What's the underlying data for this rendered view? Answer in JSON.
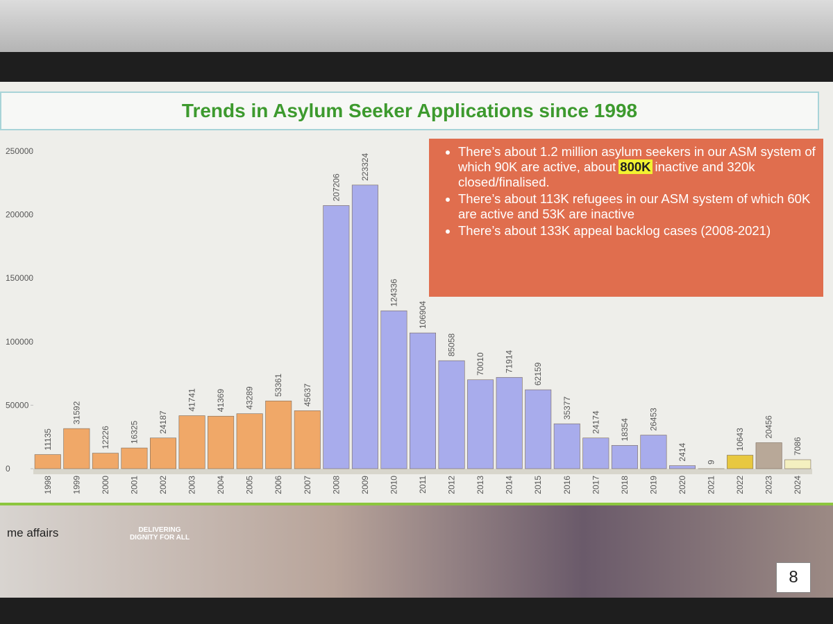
{
  "chart_data": {
    "type": "bar",
    "title": "Trends in Asylum Seeker Applications since 1998",
    "categories": [
      "1998",
      "1999",
      "2000",
      "2001",
      "2002",
      "2003",
      "2004",
      "2005",
      "2006",
      "2007",
      "2008",
      "2009",
      "2010",
      "2011",
      "2012",
      "2013",
      "2014",
      "2015",
      "2016",
      "2017",
      "2018",
      "2019",
      "2020",
      "2021",
      "2022",
      "2023",
      "2024"
    ],
    "values": [
      11135,
      31592,
      12226,
      16325,
      24187,
      41741,
      41369,
      43289,
      53361,
      45637,
      207206,
      223324,
      124336,
      106904,
      85058,
      70010,
      71914,
      62159,
      35377,
      24174,
      18354,
      26453,
      2414,
      9,
      10643,
      20456,
      7086
    ],
    "colors": [
      "#f0a868",
      "#f0a868",
      "#f0a868",
      "#f0a868",
      "#f0a868",
      "#f0a868",
      "#f0a868",
      "#f0a868",
      "#f0a868",
      "#f0a868",
      "#a8acec",
      "#a8acec",
      "#a8acec",
      "#a8acec",
      "#a8acec",
      "#a8acec",
      "#a8acec",
      "#a8acec",
      "#a8acec",
      "#a8acec",
      "#a8acec",
      "#a8acec",
      "#a8acec",
      "#e8c840",
      "#e8c840",
      "#b8a898",
      "#f4f0c0"
    ],
    "ylim": [
      0,
      250000
    ],
    "yticks": [
      0,
      50000,
      100000,
      150000,
      200000,
      250000
    ],
    "grid": false,
    "annotations": [
      [
        "There’s about 1.2 million asylum seekers in our ASM system of which 90K are active, about",
        "800K",
        "inactive and 320k closed/finalised."
      ],
      [
        "There’s about 113K refugees in our ASM system of which 60K are active and 53K are inactive"
      ],
      [
        "There’s about 133K appeal backlog cases (2008-2021)"
      ]
    ]
  },
  "footer": {
    "brand": "me affairs",
    "motto": "DELIVERING DIGNITY FOR ALL",
    "page": "8"
  }
}
